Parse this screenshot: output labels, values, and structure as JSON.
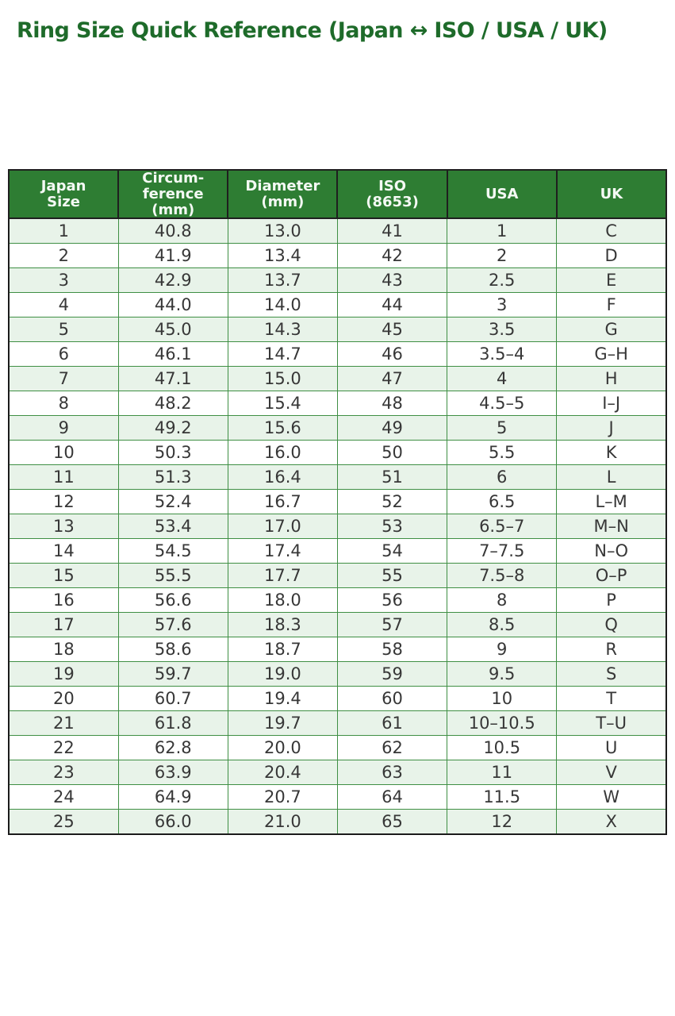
{
  "page": {
    "title": "Ring Size Quick Reference (Japan ↔ ISO / USA / UK)"
  },
  "colors": {
    "title_green": "#1e6b2a",
    "header_bg": "#2e7d33",
    "header_text": "#f4f9f4",
    "row_stripe_bg": "#e8f3e9",
    "row_bg": "#ffffff",
    "grid_green": "#3f8f44",
    "outer_border": "#1b1b1b",
    "cell_text": "#373737"
  },
  "table": {
    "columns": [
      "Japan\nSize",
      "Circum-\nference\n(mm)",
      "Diameter\n(mm)",
      "ISO\n(8653)",
      "USA",
      "UK"
    ],
    "column_keys": [
      "japan-size",
      "circumference-mm",
      "diameter-mm",
      "iso-8653",
      "usa",
      "uk"
    ],
    "rows": [
      [
        "1",
        "40.8",
        "13.0",
        "41",
        "1",
        "C"
      ],
      [
        "2",
        "41.9",
        "13.4",
        "42",
        "2",
        "D"
      ],
      [
        "3",
        "42.9",
        "13.7",
        "43",
        "2.5",
        "E"
      ],
      [
        "4",
        "44.0",
        "14.0",
        "44",
        "3",
        "F"
      ],
      [
        "5",
        "45.0",
        "14.3",
        "45",
        "3.5",
        "G"
      ],
      [
        "6",
        "46.1",
        "14.7",
        "46",
        "3.5–4",
        "G–H"
      ],
      [
        "7",
        "47.1",
        "15.0",
        "47",
        "4",
        "H"
      ],
      [
        "8",
        "48.2",
        "15.4",
        "48",
        "4.5–5",
        "I–J"
      ],
      [
        "9",
        "49.2",
        "15.6",
        "49",
        "5",
        "J"
      ],
      [
        "10",
        "50.3",
        "16.0",
        "50",
        "5.5",
        "K"
      ],
      [
        "11",
        "51.3",
        "16.4",
        "51",
        "6",
        "L"
      ],
      [
        "12",
        "52.4",
        "16.7",
        "52",
        "6.5",
        "L–M"
      ],
      [
        "13",
        "53.4",
        "17.0",
        "53",
        "6.5–7",
        "M–N"
      ],
      [
        "14",
        "54.5",
        "17.4",
        "54",
        "7–7.5",
        "N–O"
      ],
      [
        "15",
        "55.5",
        "17.7",
        "55",
        "7.5–8",
        "O–P"
      ],
      [
        "16",
        "56.6",
        "18.0",
        "56",
        "8",
        "P"
      ],
      [
        "17",
        "57.6",
        "18.3",
        "57",
        "8.5",
        "Q"
      ],
      [
        "18",
        "58.6",
        "18.7",
        "58",
        "9",
        "R"
      ],
      [
        "19",
        "59.7",
        "19.0",
        "59",
        "9.5",
        "S"
      ],
      [
        "20",
        "60.7",
        "19.4",
        "60",
        "10",
        "T"
      ],
      [
        "21",
        "61.8",
        "19.7",
        "61",
        "10–10.5",
        "T–U"
      ],
      [
        "22",
        "62.8",
        "20.0",
        "62",
        "10.5",
        "U"
      ],
      [
        "23",
        "63.9",
        "20.4",
        "63",
        "11",
        "V"
      ],
      [
        "24",
        "64.9",
        "20.7",
        "64",
        "11.5",
        "W"
      ],
      [
        "25",
        "66.0",
        "21.0",
        "65",
        "12",
        "X"
      ]
    ]
  },
  "chart_data": {
    "type": "table",
    "title": "Ring Size Quick Reference (Japan ↔ ISO / USA / UK)",
    "columns": [
      "Japan Size",
      "Circumference (mm)",
      "Diameter (mm)",
      "ISO (8653)",
      "USA",
      "UK"
    ],
    "rows": [
      [
        1,
        40.8,
        13.0,
        41,
        "1",
        "C"
      ],
      [
        2,
        41.9,
        13.4,
        42,
        "2",
        "D"
      ],
      [
        3,
        42.9,
        13.7,
        43,
        "2.5",
        "E"
      ],
      [
        4,
        44.0,
        14.0,
        44,
        "3",
        "F"
      ],
      [
        5,
        45.0,
        14.3,
        45,
        "3.5",
        "G"
      ],
      [
        6,
        46.1,
        14.7,
        46,
        "3.5–4",
        "G–H"
      ],
      [
        7,
        47.1,
        15.0,
        47,
        "4",
        "H"
      ],
      [
        8,
        48.2,
        15.4,
        48,
        "4.5–5",
        "I–J"
      ],
      [
        9,
        49.2,
        15.6,
        49,
        "5",
        "J"
      ],
      [
        10,
        50.3,
        16.0,
        50,
        "5.5",
        "K"
      ],
      [
        11,
        51.3,
        16.4,
        51,
        "6",
        "L"
      ],
      [
        12,
        52.4,
        16.7,
        52,
        "6.5",
        "L–M"
      ],
      [
        13,
        53.4,
        17.0,
        53,
        "6.5–7",
        "M–N"
      ],
      [
        14,
        54.5,
        17.4,
        54,
        "7–7.5",
        "N–O"
      ],
      [
        15,
        55.5,
        17.7,
        55,
        "7.5–8",
        "O–P"
      ],
      [
        16,
        56.6,
        18.0,
        56,
        "8",
        "P"
      ],
      [
        17,
        57.6,
        18.3,
        57,
        "8.5",
        "Q"
      ],
      [
        18,
        58.6,
        18.7,
        58,
        "9",
        "R"
      ],
      [
        19,
        59.7,
        19.0,
        59,
        "9.5",
        "S"
      ],
      [
        20,
        60.7,
        19.4,
        60,
        "10",
        "T"
      ],
      [
        21,
        61.8,
        19.7,
        61,
        "10–10.5",
        "T–U"
      ],
      [
        22,
        62.8,
        20.0,
        62,
        "10.5",
        "U"
      ],
      [
        23,
        63.9,
        20.4,
        63,
        "11",
        "V"
      ],
      [
        24,
        64.9,
        20.7,
        64,
        "11.5",
        "W"
      ],
      [
        25,
        66.0,
        21.0,
        65,
        "12",
        "X"
      ]
    ],
    "layout": {
      "striped_rows": true,
      "stripe_pattern": "odd rows light green, even rows white",
      "header_style": "green background, white bold text"
    }
  }
}
